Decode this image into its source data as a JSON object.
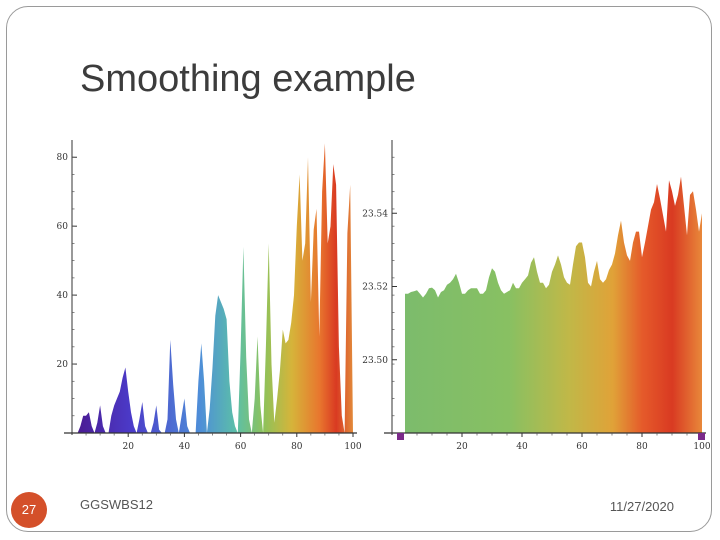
{
  "slide": {
    "title": "Smoothing example",
    "page_number": "27",
    "footer_left": "GGSWBS12",
    "footer_right": "11/27/2020"
  },
  "colors": {
    "accent_orange": "#d4502a",
    "marker_purple": "#7b2a8a"
  },
  "chart_data": [
    {
      "type": "area",
      "title": "",
      "xlabel": "",
      "ylabel": "",
      "xlim": [
        0,
        100
      ],
      "ylim": [
        0,
        85
      ],
      "x_ticks": [
        "20",
        "40",
        "60",
        "80",
        "100"
      ],
      "y_ticks": [
        "20",
        "40",
        "60",
        "80"
      ],
      "x": [
        1,
        2,
        3,
        4,
        5,
        6,
        7,
        8,
        9,
        10,
        11,
        12,
        13,
        14,
        15,
        16,
        17,
        18,
        19,
        20,
        21,
        22,
        23,
        24,
        25,
        26,
        27,
        28,
        29,
        30,
        31,
        32,
        33,
        34,
        35,
        36,
        37,
        38,
        39,
        40,
        41,
        42,
        43,
        44,
        45,
        46,
        47,
        48,
        49,
        50,
        51,
        52,
        53,
        54,
        55,
        56,
        57,
        58,
        59,
        60,
        61,
        62,
        63,
        64,
        65,
        66,
        67,
        68,
        69,
        70,
        71,
        72,
        73,
        74,
        75,
        76,
        77,
        78,
        79,
        80,
        81,
        82,
        83,
        84,
        85,
        86,
        87,
        88,
        89,
        90,
        91,
        92,
        93,
        94,
        95,
        96,
        97,
        98,
        99,
        100
      ],
      "values": [
        0,
        0,
        2,
        5,
        5,
        6,
        2,
        0,
        3,
        8,
        2,
        0,
        0,
        5,
        8,
        10,
        12,
        16,
        19,
        12,
        6,
        2,
        0,
        4,
        9,
        2,
        0,
        0,
        3,
        8,
        1,
        0,
        0,
        4,
        27,
        14,
        4,
        0,
        5,
        10,
        2,
        0,
        0,
        0,
        15,
        26,
        15,
        0,
        7,
        19,
        34,
        40,
        38,
        36,
        33,
        15,
        6,
        2,
        0,
        24,
        54,
        22,
        4,
        0,
        10,
        28,
        8,
        0,
        25,
        55,
        20,
        3,
        10,
        18,
        30,
        26,
        27,
        32,
        40,
        60,
        75,
        50,
        55,
        80,
        38,
        59,
        65,
        28,
        70,
        84,
        55,
        60,
        78,
        72,
        25,
        5,
        0,
        58,
        72,
        0
      ]
    },
    {
      "type": "area",
      "title": "",
      "xlabel": "",
      "ylabel": "",
      "xlim": [
        0,
        100
      ],
      "ylim": [
        23.48,
        23.56
      ],
      "x_ticks": [
        "20",
        "40",
        "60",
        "80",
        "100"
      ],
      "y_ticks": [
        "23.50",
        "23.52",
        "23.54"
      ],
      "x": [
        1,
        2,
        3,
        4,
        5,
        6,
        7,
        8,
        9,
        10,
        11,
        12,
        13,
        14,
        15,
        16,
        17,
        18,
        19,
        20,
        21,
        22,
        23,
        24,
        25,
        26,
        27,
        28,
        29,
        30,
        31,
        32,
        33,
        34,
        35,
        36,
        37,
        38,
        39,
        40,
        41,
        42,
        43,
        44,
        45,
        46,
        47,
        48,
        49,
        50,
        51,
        52,
        53,
        54,
        55,
        56,
        57,
        58,
        59,
        60,
        61,
        62,
        63,
        64,
        65,
        66,
        67,
        68,
        69,
        70,
        71,
        72,
        73,
        74,
        75,
        76,
        77,
        78,
        79,
        80,
        81,
        82,
        83,
        84,
        85,
        86,
        87,
        88,
        89,
        90,
        91,
        92,
        93,
        94,
        95,
        96,
        97,
        98,
        99,
        100
      ],
      "values": [
        23.518,
        23.518,
        23.5185,
        23.5187,
        23.519,
        23.518,
        23.517,
        23.518,
        23.5195,
        23.5197,
        23.519,
        23.517,
        23.5185,
        23.519,
        23.5205,
        23.521,
        23.522,
        23.5235,
        23.521,
        23.518,
        23.518,
        23.519,
        23.5195,
        23.5195,
        23.5195,
        23.518,
        23.518,
        23.519,
        23.5225,
        23.525,
        23.524,
        23.521,
        23.519,
        23.518,
        23.5185,
        23.519,
        23.521,
        23.5195,
        23.5195,
        23.521,
        23.522,
        23.523,
        23.5265,
        23.528,
        23.524,
        23.521,
        23.521,
        23.5195,
        23.5205,
        23.524,
        23.526,
        23.5285,
        23.526,
        23.5225,
        23.521,
        23.5205,
        23.526,
        23.531,
        23.532,
        23.532,
        23.528,
        23.521,
        23.52,
        23.524,
        23.527,
        23.522,
        23.521,
        23.522,
        23.5245,
        23.526,
        23.529,
        23.534,
        23.538,
        23.532,
        23.5285,
        23.527,
        23.532,
        23.535,
        23.535,
        23.528,
        23.532,
        23.5365,
        23.541,
        23.543,
        23.548,
        23.544,
        23.5395,
        23.535,
        23.549,
        23.546,
        23.542,
        23.545,
        23.55,
        23.542,
        23.534,
        23.545,
        23.546,
        23.541,
        23.535,
        23.54
      ]
    }
  ]
}
